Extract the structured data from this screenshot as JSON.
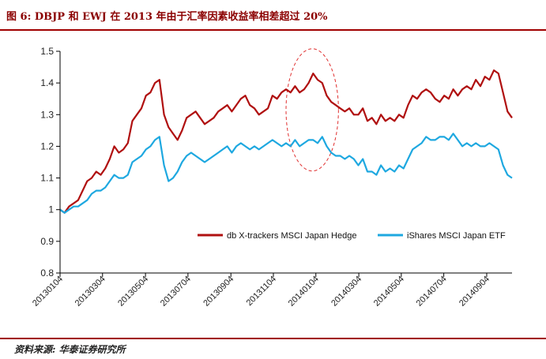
{
  "figure": {
    "title": "图 6:  DBJP 和 EWJ 在 2013 年由于汇率因素收益率相差超过 20%",
    "source": "资料来源: 华泰证券研究所"
  },
  "colors": {
    "dbjp": "#b01010",
    "ewj": "#1ea8e0",
    "rule": "#a00000",
    "ellipse": "#e03030"
  },
  "chart_data": {
    "type": "line",
    "title": "",
    "xlabel": "",
    "ylabel": "",
    "ylim": [
      0.8,
      1.5
    ],
    "yticks": [
      "0.8",
      "0.9",
      "1",
      "1.1",
      "1.2",
      "1.3",
      "1.4",
      "1.5"
    ],
    "xlim": [
      0,
      100
    ],
    "xticks": [
      {
        "label": "20130104",
        "x": 0
      },
      {
        "label": "20130304",
        "x": 9.4
      },
      {
        "label": "20130504",
        "x": 18.9
      },
      {
        "label": "20130704",
        "x": 28.3
      },
      {
        "label": "20130904",
        "x": 37.8
      },
      {
        "label": "20131104",
        "x": 47.2
      },
      {
        "label": "20140104",
        "x": 56.6
      },
      {
        "label": "20140304",
        "x": 66.1
      },
      {
        "label": "20140504",
        "x": 75.5
      },
      {
        "label": "20140704",
        "x": 84.9
      },
      {
        "label": "20140904",
        "x": 94.4
      }
    ],
    "grid": false,
    "legend": "middle-right",
    "series": [
      {
        "name": "db X-trackers MSCI Japan Hedge",
        "x": [
          0,
          1,
          2,
          3,
          4,
          5,
          6,
          7,
          8,
          9,
          10,
          11,
          12,
          13,
          14,
          15,
          16,
          17,
          18,
          19,
          20,
          21,
          22,
          23,
          24,
          25,
          26,
          27,
          28,
          29,
          30,
          31,
          32,
          33,
          34,
          35,
          36,
          37,
          38,
          39,
          40,
          41,
          42,
          43,
          44,
          45,
          46,
          47,
          48,
          49,
          50,
          51,
          52,
          53,
          54,
          55,
          56,
          57,
          58,
          59,
          60,
          61,
          62,
          63,
          64,
          65,
          66,
          67,
          68,
          69,
          70,
          71,
          72,
          73,
          74,
          75,
          76,
          77,
          78,
          79,
          80,
          81,
          82,
          83,
          84,
          85,
          86,
          87,
          88,
          89,
          90,
          91,
          92,
          93,
          94,
          95,
          96,
          97,
          98,
          99,
          100
        ],
        "values": [
          1.0,
          0.99,
          1.01,
          1.02,
          1.03,
          1.06,
          1.09,
          1.1,
          1.12,
          1.11,
          1.13,
          1.16,
          1.2,
          1.18,
          1.19,
          1.21,
          1.28,
          1.3,
          1.32,
          1.36,
          1.37,
          1.4,
          1.41,
          1.3,
          1.26,
          1.24,
          1.22,
          1.25,
          1.29,
          1.3,
          1.31,
          1.29,
          1.27,
          1.28,
          1.29,
          1.31,
          1.32,
          1.33,
          1.31,
          1.33,
          1.35,
          1.36,
          1.33,
          1.32,
          1.3,
          1.31,
          1.32,
          1.36,
          1.35,
          1.37,
          1.38,
          1.37,
          1.39,
          1.37,
          1.38,
          1.4,
          1.43,
          1.41,
          1.4,
          1.36,
          1.34,
          1.33,
          1.32,
          1.31,
          1.32,
          1.3,
          1.3,
          1.32,
          1.28,
          1.29,
          1.27,
          1.3,
          1.28,
          1.29,
          1.28,
          1.3,
          1.29,
          1.33,
          1.36,
          1.35,
          1.37,
          1.38,
          1.37,
          1.35,
          1.34,
          1.36,
          1.35,
          1.38,
          1.36,
          1.38,
          1.39,
          1.38,
          1.41,
          1.39,
          1.42,
          1.41,
          1.44,
          1.43,
          1.37,
          1.31,
          1.29
        ]
      },
      {
        "name": "iShares MSCI Japan ETF",
        "x": [
          0,
          1,
          2,
          3,
          4,
          5,
          6,
          7,
          8,
          9,
          10,
          11,
          12,
          13,
          14,
          15,
          16,
          17,
          18,
          19,
          20,
          21,
          22,
          23,
          24,
          25,
          26,
          27,
          28,
          29,
          30,
          31,
          32,
          33,
          34,
          35,
          36,
          37,
          38,
          39,
          40,
          41,
          42,
          43,
          44,
          45,
          46,
          47,
          48,
          49,
          50,
          51,
          52,
          53,
          54,
          55,
          56,
          57,
          58,
          59,
          60,
          61,
          62,
          63,
          64,
          65,
          66,
          67,
          68,
          69,
          70,
          71,
          72,
          73,
          74,
          75,
          76,
          77,
          78,
          79,
          80,
          81,
          82,
          83,
          84,
          85,
          86,
          87,
          88,
          89,
          90,
          91,
          92,
          93,
          94,
          95,
          96,
          97,
          98,
          99,
          100
        ],
        "values": [
          1.0,
          0.99,
          1.0,
          1.01,
          1.01,
          1.02,
          1.03,
          1.05,
          1.06,
          1.06,
          1.07,
          1.09,
          1.11,
          1.1,
          1.1,
          1.11,
          1.15,
          1.16,
          1.17,
          1.19,
          1.2,
          1.22,
          1.23,
          1.14,
          1.09,
          1.1,
          1.12,
          1.15,
          1.17,
          1.18,
          1.17,
          1.16,
          1.15,
          1.16,
          1.17,
          1.18,
          1.19,
          1.2,
          1.18,
          1.2,
          1.21,
          1.2,
          1.19,
          1.2,
          1.19,
          1.2,
          1.21,
          1.22,
          1.21,
          1.2,
          1.21,
          1.2,
          1.22,
          1.2,
          1.21,
          1.22,
          1.22,
          1.21,
          1.23,
          1.2,
          1.18,
          1.17,
          1.17,
          1.16,
          1.17,
          1.16,
          1.14,
          1.16,
          1.12,
          1.12,
          1.11,
          1.14,
          1.12,
          1.13,
          1.12,
          1.14,
          1.13,
          1.16,
          1.19,
          1.2,
          1.21,
          1.23,
          1.22,
          1.22,
          1.23,
          1.23,
          1.22,
          1.24,
          1.22,
          1.2,
          1.21,
          1.2,
          1.21,
          1.2,
          1.2,
          1.21,
          1.2,
          1.19,
          1.14,
          1.11,
          1.1
        ]
      }
    ],
    "annotations": [
      {
        "type": "ellipse",
        "style": "dashed",
        "x_center": 55.8,
        "x_radius": 5.8,
        "y_center": 1.315,
        "y_radius": 0.193
      }
    ]
  }
}
